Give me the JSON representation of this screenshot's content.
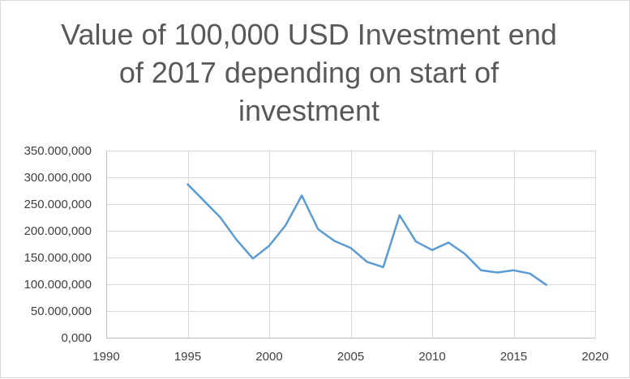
{
  "chart_data": {
    "type": "scatter",
    "title": "Value of 100,000 USD Investment end of 2017 depending on start of investment",
    "xlabel": "",
    "ylabel": "",
    "xlim": [
      1990,
      2020
    ],
    "ylim": [
      0,
      350000000
    ],
    "x_ticks": [
      1990,
      1995,
      2000,
      2005,
      2010,
      2015,
      2020
    ],
    "x_tick_labels": [
      "1990",
      "1995",
      "2000",
      "2005",
      "2010",
      "2015",
      "2020"
    ],
    "y_ticks": [
      0,
      50000000,
      100000000,
      150000000,
      200000000,
      250000000,
      300000000,
      350000000
    ],
    "y_tick_labels": [
      "0,000",
      "50.000,000",
      "100.000,000",
      "150.000,000",
      "200.000,000",
      "250.000,000",
      "300.000,000",
      "350.000,000"
    ],
    "grid": "both",
    "legend": "none",
    "line_color": "#5b9bd5",
    "series": [
      {
        "x": [
          1995,
          1996,
          1997,
          1998,
          1999,
          2000,
          2001,
          2002,
          2003,
          2004,
          2005,
          2006,
          2007,
          2008,
          2009,
          2010,
          2011,
          2012,
          2013,
          2014,
          2015,
          2016,
          2017
        ],
        "values": [
          287000000,
          256000000,
          225000000,
          183000000,
          148000000,
          172000000,
          210000000,
          266000000,
          203000000,
          181000000,
          168000000,
          142000000,
          132000000,
          229000000,
          180000000,
          164000000,
          178000000,
          157000000,
          126000000,
          122000000,
          126000000,
          120000000,
          99000000
        ]
      }
    ]
  }
}
